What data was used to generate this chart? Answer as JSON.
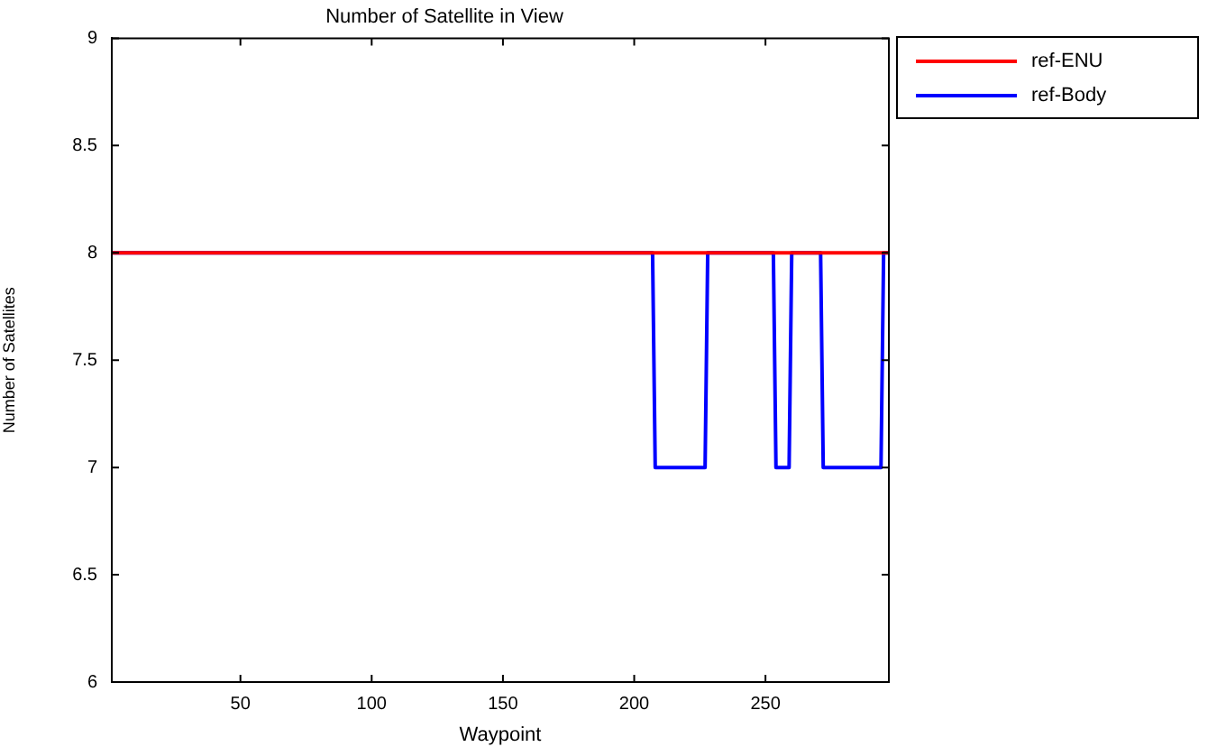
{
  "chart_data": {
    "type": "line",
    "title": "Number of Satellite in View",
    "xlabel": "Waypoint",
    "ylabel": "Number of Satellites",
    "xlim": [
      1,
      297
    ],
    "xticks": [
      50,
      100,
      150,
      200,
      250
    ],
    "ylim": [
      6,
      9
    ],
    "yticks": [
      6,
      6.5,
      7,
      7.5,
      8,
      8.5,
      9
    ],
    "grid": false,
    "legend": "top right",
    "marker": "none",
    "line_style": "solid",
    "series": [
      {
        "name": "ref-ENU",
        "color": "#ff0000",
        "x": [
          1,
          297
        ],
        "values": [
          8,
          8
        ]
      },
      {
        "name": "ref-Body",
        "color": "#0000ff",
        "x": [
          1,
          207,
          208,
          227,
          228,
          253,
          254,
          259,
          260,
          271,
          272,
          294,
          295,
          297
        ],
        "values": [
          8,
          8,
          7,
          7,
          8,
          8,
          7,
          7,
          8,
          8,
          7,
          7,
          8,
          8
        ]
      }
    ]
  }
}
